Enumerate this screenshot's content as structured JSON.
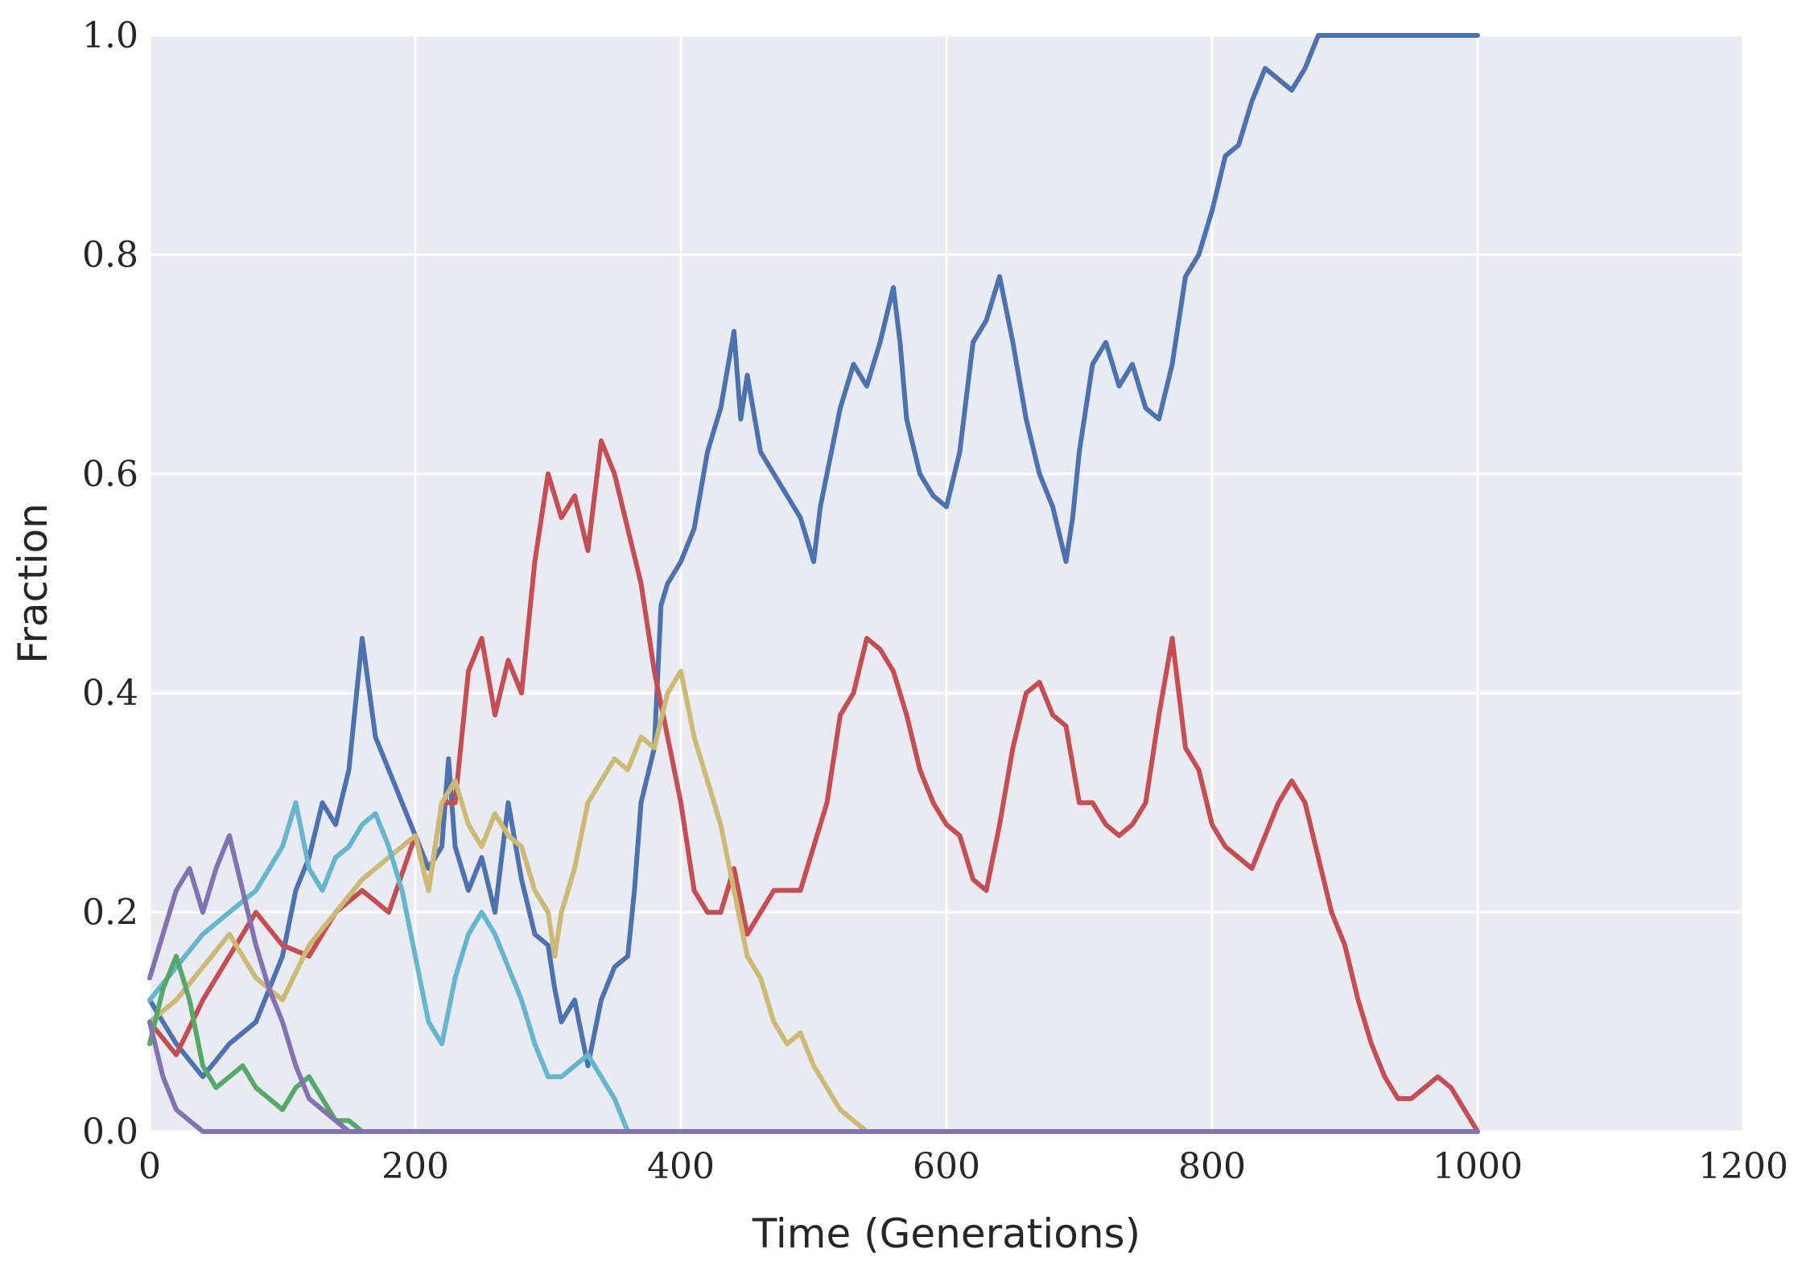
{
  "chart_data": {
    "type": "line",
    "title": "",
    "xlabel": "Time (Generations)",
    "ylabel": "Fraction",
    "xlim": [
      0,
      1200
    ],
    "ylim": [
      0,
      1.0
    ],
    "xticks": [
      0,
      200,
      400,
      600,
      800,
      1000,
      1200
    ],
    "yticks": [
      0.0,
      0.2,
      0.4,
      0.6,
      0.8,
      1.0
    ],
    "xtick_labels": [
      "0",
      "200",
      "400",
      "600",
      "800",
      "1000",
      "1200"
    ],
    "ytick_labels": [
      "0.0",
      "0.2",
      "0.4",
      "0.6",
      "0.8",
      "1.0"
    ],
    "grid": true,
    "legend": "none",
    "background": "#EAEAF2",
    "series": [
      {
        "color": "#4C72B0",
        "points": [
          [
            0,
            0.12
          ],
          [
            20,
            0.08
          ],
          [
            40,
            0.05
          ],
          [
            60,
            0.08
          ],
          [
            80,
            0.1
          ],
          [
            100,
            0.16
          ],
          [
            110,
            0.22
          ],
          [
            120,
            0.25
          ],
          [
            130,
            0.3
          ],
          [
            140,
            0.28
          ],
          [
            150,
            0.33
          ],
          [
            160,
            0.45
          ],
          [
            170,
            0.36
          ],
          [
            180,
            0.33
          ],
          [
            190,
            0.3
          ],
          [
            200,
            0.27
          ],
          [
            210,
            0.24
          ],
          [
            220,
            0.26
          ],
          [
            225,
            0.34
          ],
          [
            230,
            0.26
          ],
          [
            240,
            0.22
          ],
          [
            250,
            0.25
          ],
          [
            260,
            0.2
          ],
          [
            270,
            0.3
          ],
          [
            280,
            0.23
          ],
          [
            290,
            0.18
          ],
          [
            300,
            0.17
          ],
          [
            305,
            0.13
          ],
          [
            310,
            0.1
          ],
          [
            320,
            0.12
          ],
          [
            330,
            0.06
          ],
          [
            340,
            0.12
          ],
          [
            350,
            0.15
          ],
          [
            360,
            0.16
          ],
          [
            365,
            0.22
          ],
          [
            370,
            0.3
          ],
          [
            380,
            0.35
          ],
          [
            385,
            0.48
          ],
          [
            390,
            0.5
          ],
          [
            400,
            0.52
          ],
          [
            410,
            0.55
          ],
          [
            420,
            0.62
          ],
          [
            430,
            0.66
          ],
          [
            440,
            0.73
          ],
          [
            445,
            0.65
          ],
          [
            450,
            0.69
          ],
          [
            460,
            0.62
          ],
          [
            470,
            0.6
          ],
          [
            480,
            0.58
          ],
          [
            490,
            0.56
          ],
          [
            500,
            0.52
          ],
          [
            505,
            0.57
          ],
          [
            510,
            0.6
          ],
          [
            520,
            0.66
          ],
          [
            530,
            0.7
          ],
          [
            540,
            0.68
          ],
          [
            550,
            0.72
          ],
          [
            560,
            0.77
          ],
          [
            565,
            0.72
          ],
          [
            570,
            0.65
          ],
          [
            580,
            0.6
          ],
          [
            590,
            0.58
          ],
          [
            600,
            0.57
          ],
          [
            610,
            0.62
          ],
          [
            620,
            0.72
          ],
          [
            630,
            0.74
          ],
          [
            640,
            0.78
          ],
          [
            650,
            0.72
          ],
          [
            660,
            0.65
          ],
          [
            670,
            0.6
          ],
          [
            680,
            0.57
          ],
          [
            690,
            0.52
          ],
          [
            695,
            0.56
          ],
          [
            700,
            0.62
          ],
          [
            710,
            0.7
          ],
          [
            720,
            0.72
          ],
          [
            730,
            0.68
          ],
          [
            740,
            0.7
          ],
          [
            750,
            0.66
          ],
          [
            760,
            0.65
          ],
          [
            770,
            0.7
          ],
          [
            780,
            0.78
          ],
          [
            790,
            0.8
          ],
          [
            800,
            0.84
          ],
          [
            810,
            0.89
          ],
          [
            820,
            0.9
          ],
          [
            830,
            0.94
          ],
          [
            840,
            0.97
          ],
          [
            850,
            0.96
          ],
          [
            860,
            0.95
          ],
          [
            870,
            0.97
          ],
          [
            880,
            1.0
          ],
          [
            1000,
            1.0
          ]
        ]
      },
      {
        "color": "#C44E52",
        "points": [
          [
            0,
            0.1
          ],
          [
            20,
            0.07
          ],
          [
            40,
            0.12
          ],
          [
            60,
            0.16
          ],
          [
            80,
            0.2
          ],
          [
            100,
            0.17
          ],
          [
            120,
            0.16
          ],
          [
            140,
            0.2
          ],
          [
            160,
            0.22
          ],
          [
            180,
            0.2
          ],
          [
            200,
            0.27
          ],
          [
            210,
            0.22
          ],
          [
            220,
            0.3
          ],
          [
            230,
            0.3
          ],
          [
            240,
            0.42
          ],
          [
            250,
            0.45
          ],
          [
            260,
            0.38
          ],
          [
            270,
            0.43
          ],
          [
            280,
            0.4
          ],
          [
            290,
            0.52
          ],
          [
            300,
            0.6
          ],
          [
            310,
            0.56
          ],
          [
            320,
            0.58
          ],
          [
            330,
            0.53
          ],
          [
            340,
            0.63
          ],
          [
            350,
            0.6
          ],
          [
            360,
            0.55
          ],
          [
            370,
            0.5
          ],
          [
            380,
            0.42
          ],
          [
            390,
            0.36
          ],
          [
            400,
            0.3
          ],
          [
            410,
            0.22
          ],
          [
            420,
            0.2
          ],
          [
            430,
            0.2
          ],
          [
            440,
            0.24
          ],
          [
            450,
            0.18
          ],
          [
            460,
            0.2
          ],
          [
            470,
            0.22
          ],
          [
            480,
            0.22
          ],
          [
            490,
            0.22
          ],
          [
            500,
            0.26
          ],
          [
            510,
            0.3
          ],
          [
            520,
            0.38
          ],
          [
            530,
            0.4
          ],
          [
            540,
            0.45
          ],
          [
            550,
            0.44
          ],
          [
            560,
            0.42
          ],
          [
            570,
            0.38
          ],
          [
            580,
            0.33
          ],
          [
            590,
            0.3
          ],
          [
            600,
            0.28
          ],
          [
            610,
            0.27
          ],
          [
            620,
            0.23
          ],
          [
            630,
            0.22
          ],
          [
            640,
            0.28
          ],
          [
            650,
            0.35
          ],
          [
            660,
            0.4
          ],
          [
            670,
            0.41
          ],
          [
            680,
            0.38
          ],
          [
            690,
            0.37
          ],
          [
            700,
            0.3
          ],
          [
            710,
            0.3
          ],
          [
            720,
            0.28
          ],
          [
            730,
            0.27
          ],
          [
            740,
            0.28
          ],
          [
            750,
            0.3
          ],
          [
            760,
            0.38
          ],
          [
            770,
            0.45
          ],
          [
            780,
            0.35
          ],
          [
            790,
            0.33
          ],
          [
            800,
            0.28
          ],
          [
            810,
            0.26
          ],
          [
            820,
            0.25
          ],
          [
            830,
            0.24
          ],
          [
            840,
            0.27
          ],
          [
            850,
            0.3
          ],
          [
            860,
            0.32
          ],
          [
            870,
            0.3
          ],
          [
            880,
            0.25
          ],
          [
            890,
            0.2
          ],
          [
            900,
            0.17
          ],
          [
            910,
            0.12
          ],
          [
            920,
            0.08
          ],
          [
            930,
            0.05
          ],
          [
            940,
            0.03
          ],
          [
            950,
            0.03
          ],
          [
            960,
            0.04
          ],
          [
            970,
            0.05
          ],
          [
            980,
            0.04
          ],
          [
            990,
            0.02
          ],
          [
            1000,
            0.0
          ]
        ]
      },
      {
        "color": "#CCB974",
        "points": [
          [
            0,
            0.1
          ],
          [
            20,
            0.12
          ],
          [
            40,
            0.15
          ],
          [
            60,
            0.18
          ],
          [
            80,
            0.14
          ],
          [
            100,
            0.12
          ],
          [
            120,
            0.17
          ],
          [
            140,
            0.2
          ],
          [
            160,
            0.23
          ],
          [
            180,
            0.25
          ],
          [
            200,
            0.27
          ],
          [
            210,
            0.22
          ],
          [
            220,
            0.3
          ],
          [
            230,
            0.32
          ],
          [
            240,
            0.28
          ],
          [
            250,
            0.26
          ],
          [
            260,
            0.29
          ],
          [
            270,
            0.27
          ],
          [
            280,
            0.26
          ],
          [
            290,
            0.22
          ],
          [
            300,
            0.2
          ],
          [
            305,
            0.16
          ],
          [
            310,
            0.2
          ],
          [
            320,
            0.24
          ],
          [
            330,
            0.3
          ],
          [
            340,
            0.32
          ],
          [
            350,
            0.34
          ],
          [
            360,
            0.33
          ],
          [
            370,
            0.36
          ],
          [
            380,
            0.35
          ],
          [
            390,
            0.4
          ],
          [
            400,
            0.42
          ],
          [
            410,
            0.36
          ],
          [
            420,
            0.32
          ],
          [
            430,
            0.28
          ],
          [
            440,
            0.22
          ],
          [
            450,
            0.16
          ],
          [
            460,
            0.14
          ],
          [
            470,
            0.1
          ],
          [
            480,
            0.08
          ],
          [
            490,
            0.09
          ],
          [
            500,
            0.06
          ],
          [
            510,
            0.04
          ],
          [
            520,
            0.02
          ],
          [
            530,
            0.01
          ],
          [
            540,
            0.0
          ]
        ]
      },
      {
        "color": "#64B5CD",
        "points": [
          [
            0,
            0.12
          ],
          [
            20,
            0.15
          ],
          [
            40,
            0.18
          ],
          [
            60,
            0.2
          ],
          [
            80,
            0.22
          ],
          [
            100,
            0.26
          ],
          [
            110,
            0.3
          ],
          [
            120,
            0.24
          ],
          [
            130,
            0.22
          ],
          [
            140,
            0.25
          ],
          [
            150,
            0.26
          ],
          [
            160,
            0.28
          ],
          [
            170,
            0.29
          ],
          [
            180,
            0.26
          ],
          [
            190,
            0.22
          ],
          [
            200,
            0.16
          ],
          [
            210,
            0.1
          ],
          [
            220,
            0.08
          ],
          [
            230,
            0.14
          ],
          [
            240,
            0.18
          ],
          [
            250,
            0.2
          ],
          [
            260,
            0.18
          ],
          [
            270,
            0.15
          ],
          [
            280,
            0.12
          ],
          [
            290,
            0.08
          ],
          [
            300,
            0.05
          ],
          [
            310,
            0.05
          ],
          [
            320,
            0.06
          ],
          [
            330,
            0.07
          ],
          [
            340,
            0.05
          ],
          [
            350,
            0.03
          ],
          [
            360,
            0.0
          ]
        ]
      },
      {
        "color": "#55A868",
        "points": [
          [
            0,
            0.08
          ],
          [
            10,
            0.13
          ],
          [
            20,
            0.16
          ],
          [
            30,
            0.12
          ],
          [
            40,
            0.06
          ],
          [
            50,
            0.04
          ],
          [
            60,
            0.05
          ],
          [
            70,
            0.06
          ],
          [
            80,
            0.04
          ],
          [
            90,
            0.03
          ],
          [
            100,
            0.02
          ],
          [
            110,
            0.04
          ],
          [
            120,
            0.05
          ],
          [
            130,
            0.03
          ],
          [
            140,
            0.01
          ],
          [
            150,
            0.01
          ],
          [
            160,
            0.0
          ]
        ]
      },
      {
        "color": "#8172B2",
        "points": [
          [
            0,
            0.14
          ],
          [
            10,
            0.18
          ],
          [
            20,
            0.22
          ],
          [
            30,
            0.24
          ],
          [
            40,
            0.2
          ],
          [
            50,
            0.24
          ],
          [
            60,
            0.27
          ],
          [
            70,
            0.22
          ],
          [
            80,
            0.17
          ],
          [
            90,
            0.13
          ],
          [
            100,
            0.1
          ],
          [
            110,
            0.06
          ],
          [
            120,
            0.03
          ],
          [
            130,
            0.02
          ],
          [
            140,
            0.01
          ],
          [
            150,
            0.0
          ]
        ]
      },
      {
        "color": "#8172B2",
        "points": [
          [
            0,
            0.1
          ],
          [
            10,
            0.05
          ],
          [
            20,
            0.02
          ],
          [
            30,
            0.01
          ],
          [
            40,
            0.0
          ],
          [
            1000,
            0.0
          ]
        ]
      }
    ]
  }
}
